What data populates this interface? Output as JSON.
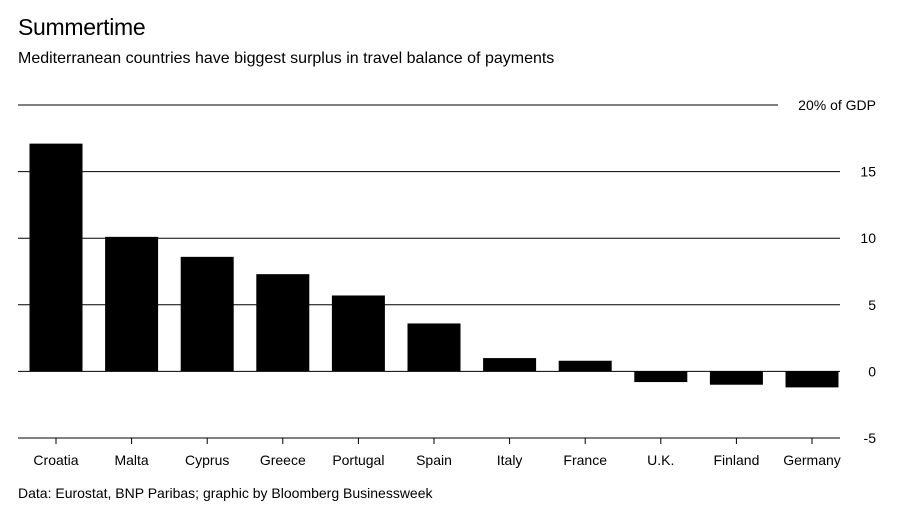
{
  "chart_data": {
    "type": "bar",
    "title": "Summertime",
    "subtitle": "Mediterranean countries have biggest surplus in travel balance of payments",
    "ylabel": "",
    "unit_label": "20% of GDP",
    "categories": [
      "Croatia",
      "Malta",
      "Cyprus",
      "Greece",
      "Portugal",
      "Spain",
      "Italy",
      "France",
      "U.K.",
      "Finland",
      "Germany"
    ],
    "values": [
      17.1,
      10.1,
      8.6,
      7.3,
      5.7,
      3.6,
      1.0,
      0.8,
      -0.8,
      -1.0,
      -1.2
    ],
    "ylim": [
      -5,
      20
    ],
    "yticks": [
      {
        "value": 20,
        "label": "20% of GDP"
      },
      {
        "value": 15,
        "label": "15"
      },
      {
        "value": 10,
        "label": "10"
      },
      {
        "value": 5,
        "label": "5"
      },
      {
        "value": 0,
        "label": "0"
      },
      {
        "value": -5,
        "label": "-5"
      }
    ],
    "grid": true,
    "bar_color": "#000000",
    "grid_color": "#000000",
    "source": "Data: Eurostat, BNP Paribas; graphic by Bloomberg Businessweek"
  }
}
